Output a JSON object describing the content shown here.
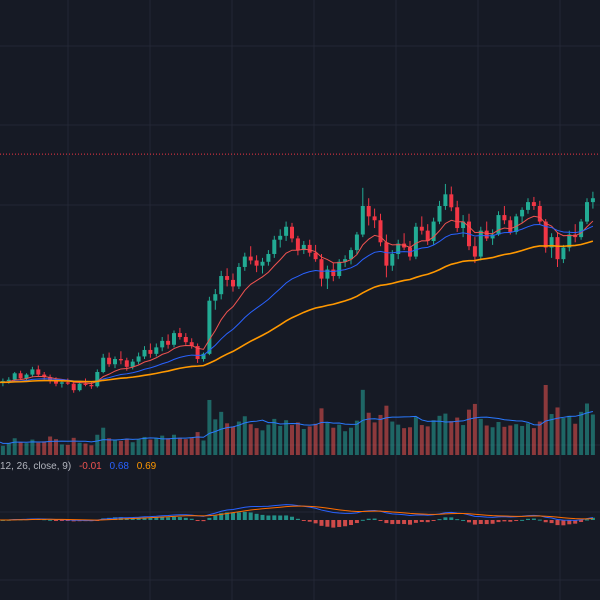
{
  "colors": {
    "background": "#161a25",
    "grid": "#232735",
    "up": "#22ab94",
    "down": "#f23645",
    "ema_fast": "#ef5350",
    "ema_mid": "#2962ff",
    "ema_slow": "#ff9800",
    "price_line": "#f23645",
    "volume_ma": "#2979ff",
    "macd_line": "#2962ff",
    "signal_line": "#ff6d00",
    "hist_pos": "#26a69a",
    "hist_neg": "#ef5350"
  },
  "macd_legend": {
    "params": "12, 26, close, 9)",
    "hist": "-0.01",
    "macd": "0.68",
    "signal": "0.69"
  },
  "chart_data": {
    "type": "candlestick",
    "price_line_level": 53.2,
    "price_range": [
      30,
      62
    ],
    "candles": [
      [
        35.8,
        36.0,
        35.4,
        35.6
      ],
      [
        35.6,
        35.9,
        35.3,
        35.7
      ],
      [
        35.7,
        36.0,
        35.5,
        35.8
      ],
      [
        35.8,
        36.4,
        35.7,
        36.3
      ],
      [
        36.3,
        36.5,
        35.8,
        35.9
      ],
      [
        35.9,
        36.3,
        35.7,
        36.2
      ],
      [
        36.2,
        36.8,
        36.0,
        36.6
      ],
      [
        36.6,
        36.9,
        36.1,
        36.2
      ],
      [
        36.2,
        36.4,
        35.8,
        36.0
      ],
      [
        36.0,
        36.2,
        35.5,
        35.7
      ],
      [
        35.7,
        36.0,
        35.3,
        35.5
      ],
      [
        35.5,
        35.8,
        35.2,
        35.6
      ],
      [
        35.6,
        35.9,
        35.4,
        35.5
      ],
      [
        35.5,
        35.7,
        34.8,
        35.0
      ],
      [
        35.0,
        35.6,
        34.9,
        35.5
      ],
      [
        35.5,
        35.9,
        35.3,
        35.4
      ],
      [
        35.4,
        35.6,
        35.1,
        35.3
      ],
      [
        35.3,
        36.6,
        35.2,
        36.4
      ],
      [
        36.4,
        37.8,
        36.3,
        37.5
      ],
      [
        37.5,
        37.9,
        36.8,
        37.0
      ],
      [
        37.0,
        37.6,
        36.7,
        37.4
      ],
      [
        37.4,
        38.0,
        37.0,
        37.3
      ],
      [
        37.3,
        37.5,
        36.5,
        36.8
      ],
      [
        36.8,
        37.4,
        36.6,
        37.2
      ],
      [
        37.2,
        37.9,
        37.0,
        37.6
      ],
      [
        37.6,
        38.4,
        37.4,
        38.1
      ],
      [
        38.1,
        38.6,
        37.5,
        37.8
      ],
      [
        37.8,
        38.6,
        37.6,
        38.3
      ],
      [
        38.3,
        39.1,
        38.0,
        38.8
      ],
      [
        38.8,
        39.3,
        38.2,
        38.5
      ],
      [
        38.5,
        39.6,
        38.3,
        39.4
      ],
      [
        39.4,
        39.8,
        38.9,
        39.1
      ],
      [
        39.1,
        39.4,
        38.5,
        38.7
      ],
      [
        38.7,
        39.0,
        38.2,
        38.4
      ],
      [
        38.4,
        38.6,
        37.1,
        37.4
      ],
      [
        37.4,
        37.9,
        37.2,
        37.8
      ],
      [
        37.8,
        42.2,
        37.7,
        41.9
      ],
      [
        41.9,
        42.8,
        41.2,
        42.4
      ],
      [
        42.4,
        44.2,
        42.0,
        43.8
      ],
      [
        43.8,
        44.4,
        43.0,
        43.5
      ],
      [
        43.5,
        44.0,
        42.6,
        43.0
      ],
      [
        43.0,
        44.8,
        42.8,
        44.5
      ],
      [
        44.5,
        45.6,
        44.2,
        45.3
      ],
      [
        45.3,
        46.1,
        44.7,
        45.0
      ],
      [
        45.0,
        45.4,
        44.1,
        44.6
      ],
      [
        44.6,
        45.2,
        44.0,
        44.9
      ],
      [
        44.9,
        45.8,
        44.6,
        45.5
      ],
      [
        45.5,
        46.9,
        45.2,
        46.6
      ],
      [
        46.6,
        47.4,
        46.0,
        46.9
      ],
      [
        46.9,
        48.0,
        46.5,
        47.6
      ],
      [
        47.6,
        47.9,
        46.4,
        46.7
      ],
      [
        46.7,
        46.9,
        45.4,
        45.8
      ],
      [
        45.8,
        46.5,
        45.5,
        46.2
      ],
      [
        46.2,
        46.6,
        45.3,
        45.6
      ],
      [
        45.6,
        46.2,
        44.9,
        45.1
      ],
      [
        45.1,
        45.5,
        43.0,
        43.6
      ],
      [
        43.6,
        44.6,
        42.8,
        44.3
      ],
      [
        44.3,
        44.8,
        43.4,
        43.8
      ],
      [
        43.8,
        45.1,
        43.6,
        44.9
      ],
      [
        44.9,
        45.4,
        44.5,
        45.1
      ],
      [
        45.1,
        46.0,
        44.7,
        45.8
      ],
      [
        45.8,
        47.2,
        45.5,
        47.0
      ],
      [
        47.0,
        50.6,
        46.8,
        49.2
      ],
      [
        49.2,
        49.8,
        47.7,
        48.4
      ],
      [
        48.4,
        49.0,
        47.5,
        48.1
      ],
      [
        48.1,
        48.6,
        46.1,
        46.4
      ],
      [
        46.4,
        47.0,
        43.7,
        44.6
      ],
      [
        44.6,
        45.8,
        44.2,
        45.5
      ],
      [
        45.5,
        46.6,
        45.1,
        46.3
      ],
      [
        46.3,
        47.1,
        45.8,
        46.0
      ],
      [
        46.0,
        46.5,
        45.0,
        45.3
      ],
      [
        45.3,
        47.9,
        45.1,
        47.6
      ],
      [
        47.6,
        48.4,
        47.0,
        47.3
      ],
      [
        47.3,
        47.8,
        46.2,
        46.5
      ],
      [
        46.5,
        48.3,
        46.2,
        48.0
      ],
      [
        48.0,
        49.6,
        47.8,
        49.2
      ],
      [
        49.2,
        50.9,
        48.9,
        50.1
      ],
      [
        50.1,
        50.7,
        48.8,
        49.1
      ],
      [
        49.1,
        49.6,
        47.2,
        47.5
      ],
      [
        47.5,
        48.5,
        46.8,
        48.0
      ],
      [
        48.0,
        48.6,
        45.8,
        46.1
      ],
      [
        46.1,
        46.8,
        44.8,
        45.3
      ],
      [
        45.3,
        47.6,
        45.0,
        47.3
      ],
      [
        47.3,
        48.0,
        46.5,
        46.7
      ],
      [
        46.7,
        47.4,
        46.2,
        47.0
      ],
      [
        47.0,
        48.8,
        46.9,
        48.5
      ],
      [
        48.5,
        49.2,
        47.8,
        48.1
      ],
      [
        48.1,
        48.4,
        47.0,
        47.2
      ],
      [
        47.2,
        48.6,
        47.0,
        48.4
      ],
      [
        48.4,
        49.1,
        47.9,
        48.9
      ],
      [
        48.9,
        49.8,
        48.6,
        49.5
      ],
      [
        49.5,
        49.9,
        48.9,
        49.2
      ],
      [
        49.2,
        49.6,
        47.8,
        48.0
      ],
      [
        48.0,
        48.2,
        45.6,
        46.0
      ],
      [
        46.0,
        47.1,
        45.2,
        46.8
      ],
      [
        46.8,
        47.2,
        44.5,
        45.1
      ],
      [
        45.1,
        46.2,
        44.8,
        46.0
      ],
      [
        46.0,
        47.3,
        45.7,
        47.0
      ],
      [
        47.0,
        47.8,
        46.4,
        46.8
      ],
      [
        46.8,
        48.2,
        46.6,
        48.0
      ],
      [
        48.0,
        49.8,
        47.8,
        49.5
      ],
      [
        49.5,
        50.3,
        49.0,
        49.8
      ]
    ],
    "volume": [
      [
        3.2,
        1
      ],
      [
        2.1,
        1
      ],
      [
        2.6,
        1
      ],
      [
        3.8,
        1
      ],
      [
        2.9,
        0
      ],
      [
        2.7,
        1
      ],
      [
        3.5,
        1
      ],
      [
        2.8,
        0
      ],
      [
        3.1,
        0
      ],
      [
        4.2,
        0
      ],
      [
        3.6,
        0
      ],
      [
        2.4,
        1
      ],
      [
        2.3,
        0
      ],
      [
        3.9,
        0
      ],
      [
        2.8,
        1
      ],
      [
        2.6,
        0
      ],
      [
        2.2,
        0
      ],
      [
        4.6,
        1
      ],
      [
        6.2,
        1
      ],
      [
        3.8,
        0
      ],
      [
        3.4,
        1
      ],
      [
        3.2,
        0
      ],
      [
        3.7,
        0
      ],
      [
        2.9,
        1
      ],
      [
        3.6,
        1
      ],
      [
        4.1,
        1
      ],
      [
        3.5,
        0
      ],
      [
        3.9,
        1
      ],
      [
        4.4,
        1
      ],
      [
        3.8,
        0
      ],
      [
        4.6,
        1
      ],
      [
        3.9,
        0
      ],
      [
        3.6,
        0
      ],
      [
        4.0,
        0
      ],
      [
        5.2,
        0
      ],
      [
        3.3,
        1
      ],
      [
        12.5,
        1
      ],
      [
        8.1,
        1
      ],
      [
        9.8,
        1
      ],
      [
        7.2,
        0
      ],
      [
        6.4,
        0
      ],
      [
        7.6,
        1
      ],
      [
        8.8,
        1
      ],
      [
        7.0,
        0
      ],
      [
        6.1,
        0
      ],
      [
        5.6,
        1
      ],
      [
        6.9,
        1
      ],
      [
        8.2,
        1
      ],
      [
        6.6,
        1
      ],
      [
        7.9,
        1
      ],
      [
        6.8,
        0
      ],
      [
        7.4,
        0
      ],
      [
        5.9,
        1
      ],
      [
        6.5,
        0
      ],
      [
        7.1,
        0
      ],
      [
        10.6,
        0
      ],
      [
        7.3,
        1
      ],
      [
        6.2,
        0
      ],
      [
        6.9,
        1
      ],
      [
        5.4,
        1
      ],
      [
        6.2,
        1
      ],
      [
        7.8,
        1
      ],
      [
        14.8,
        1
      ],
      [
        9.6,
        0
      ],
      [
        7.4,
        0
      ],
      [
        9.1,
        0
      ],
      [
        11.2,
        0
      ],
      [
        7.6,
        1
      ],
      [
        6.9,
        1
      ],
      [
        6.1,
        0
      ],
      [
        6.3,
        0
      ],
      [
        8.6,
        1
      ],
      [
        6.8,
        0
      ],
      [
        6.5,
        0
      ],
      [
        7.9,
        1
      ],
      [
        8.9,
        1
      ],
      [
        9.4,
        1
      ],
      [
        7.7,
        0
      ],
      [
        8.5,
        0
      ],
      [
        6.8,
        1
      ],
      [
        10.3,
        0
      ],
      [
        11.6,
        0
      ],
      [
        8.2,
        1
      ],
      [
        6.7,
        0
      ],
      [
        6.3,
        1
      ],
      [
        7.5,
        1
      ],
      [
        6.4,
        0
      ],
      [
        6.7,
        0
      ],
      [
        7.0,
        1
      ],
      [
        6.6,
        1
      ],
      [
        7.2,
        1
      ],
      [
        6.1,
        0
      ],
      [
        7.6,
        0
      ],
      [
        15.9,
        0
      ],
      [
        9.3,
        1
      ],
      [
        10.8,
        0
      ],
      [
        8.4,
        1
      ],
      [
        8.9,
        1
      ],
      [
        7.1,
        0
      ],
      [
        9.8,
        1
      ],
      [
        11.7,
        1
      ],
      [
        9.2,
        1
      ]
    ],
    "macd": {
      "legend_values": {
        "hist": -0.01,
        "macd": 0.68,
        "signal": 0.69
      }
    }
  }
}
